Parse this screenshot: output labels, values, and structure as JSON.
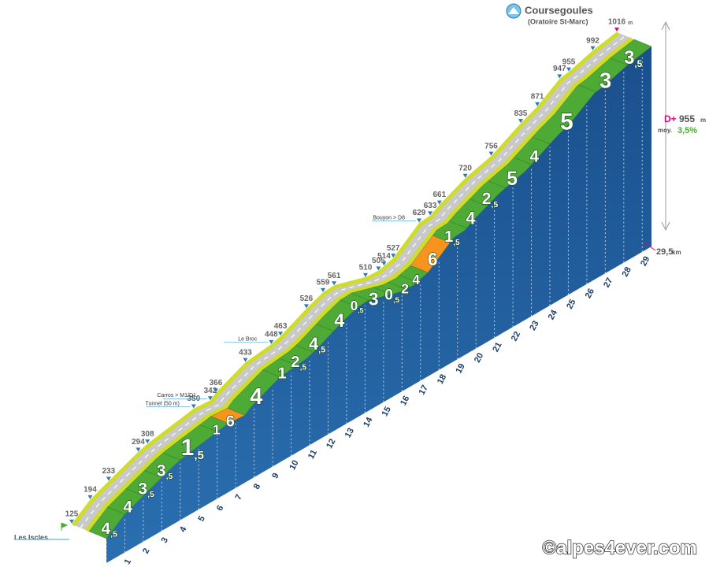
{
  "chart_data": {
    "type": "climb-profile",
    "title": "Coursegoules",
    "subtitle": "(Oratoire St-Marc)",
    "start_label": "Les Iscles",
    "altitude_unit": "m",
    "xlim": [
      0,
      29.5
    ],
    "xticks": [
      0,
      1,
      2,
      3,
      4,
      5,
      6,
      7,
      8,
      9,
      10,
      11,
      12,
      13,
      14,
      15,
      16,
      17,
      18,
      19,
      20,
      21,
      22,
      23,
      24,
      25,
      26,
      27,
      28,
      29
    ],
    "profile": {
      "km": [
        0,
        1.0,
        2.0,
        3.6,
        4.1,
        6.6,
        7.5,
        7.8,
        9.4,
        10.8,
        11.3,
        12.7,
        13.6,
        14.2,
        15.9,
        16.6,
        16.9,
        17.4,
        18.8,
        19.4,
        19.9,
        21.3,
        22.7,
        24.3,
        25.2,
        26.4,
        26.9,
        28.2,
        29.5
      ],
      "altitude": [
        125,
        194,
        233,
        294,
        308,
        350,
        342,
        366,
        433,
        448,
        463,
        526,
        559,
        561,
        510,
        505,
        514,
        527,
        629,
        633,
        661,
        720,
        756,
        835,
        871,
        947,
        955,
        992,
        1016
      ]
    },
    "gradient": {
      "km": [
        0,
        1,
        2,
        3,
        4,
        6,
        6.6,
        7.5,
        9.4,
        10.3,
        11.2,
        12.3,
        13.6,
        14.2,
        15.4,
        16.2,
        16.8,
        17.4,
        18.6,
        19.5,
        20.6,
        21.6,
        23,
        24,
        26.5,
        28.2
      ],
      "values": [
        4.5,
        4,
        3.5,
        3.5,
        1.5,
        1,
        6,
        4,
        1,
        2.5,
        4.5,
        4,
        0.5,
        3,
        0.5,
        2,
        4,
        6,
        1.5,
        4,
        2.5,
        5,
        4,
        5,
        3,
        3.5
      ],
      "value_labels": [
        "4,5",
        "4",
        "3,5",
        "3,5",
        "1,5",
        "1",
        "6",
        "4",
        "1",
        "2,5",
        "4,5",
        "4",
        "0,5",
        "3",
        "0,5",
        "2",
        "4",
        "6",
        "1,5",
        "4",
        "2,5",
        "5",
        "4",
        "5",
        "3",
        "3,5"
      ],
      "colors": [
        "#4dab35",
        "#4dab35",
        "#4dab35",
        "#4dab35",
        "#4dab35",
        "#4dab35",
        "#f7941d",
        "#4dab35",
        "#4dab35",
        "#4dab35",
        "#4dab35",
        "#4dab35",
        "#4dab35",
        "#4dab35",
        "#4dab35",
        "#4dab35",
        "#4dab35",
        "#f7941d",
        "#4dab35",
        "#4dab35",
        "#4dab35",
        "#4dab35",
        "#4dab35",
        "#4dab35",
        "#4dab35",
        "#4dab35"
      ]
    },
    "annotations": [
      {
        "text": "Tunnel (50 m)",
        "km": 6.6
      },
      {
        "text": "Carros > M1/D1",
        "km": 7.5
      },
      {
        "text": "Le Broc",
        "km": 10.8
      },
      {
        "text": "Bouyon > D8",
        "km": 18.8
      }
    ],
    "elevation_gain": {
      "label": "D+",
      "value": 955,
      "unit": "m"
    },
    "average": {
      "label": "moy.",
      "value": 3.5,
      "value_label": "3,5%"
    },
    "distance": {
      "value": 29.5,
      "label": "29,5",
      "unit": "km"
    },
    "credit": "©alpes4ever.com"
  }
}
